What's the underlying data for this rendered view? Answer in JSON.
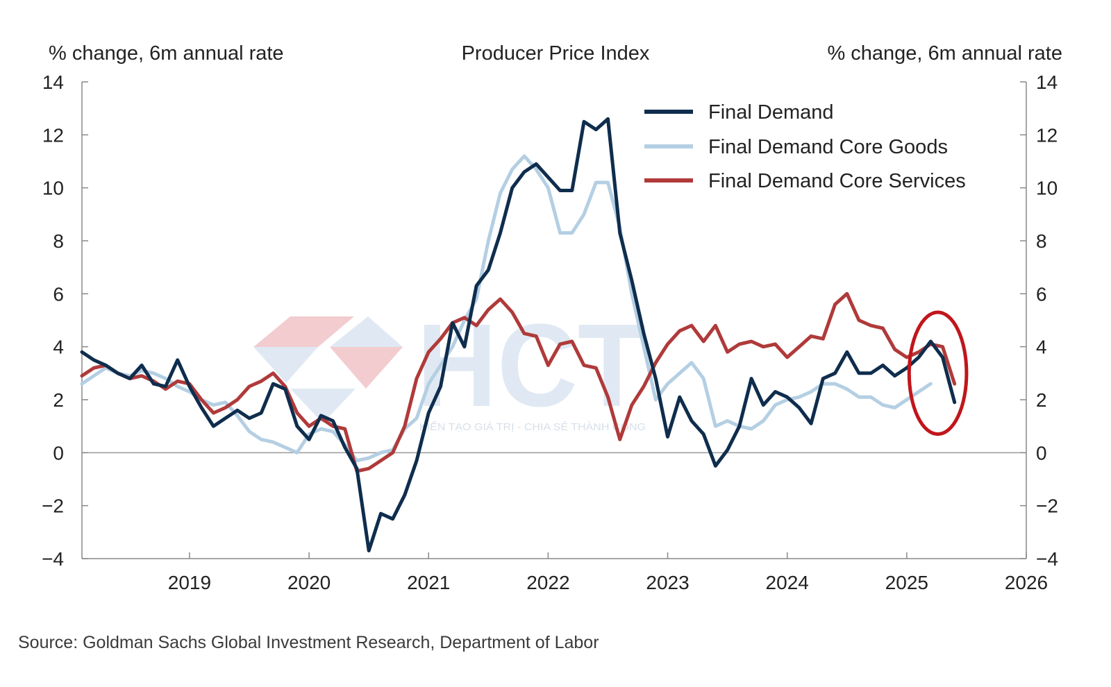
{
  "chart_data": {
    "type": "line",
    "title": "Producer Price Index",
    "ylabel_left": "% change, 6m annual rate",
    "ylabel_right": "% change, 6m annual rate",
    "ylim": [
      -4,
      14
    ],
    "y_ticks": [
      -4,
      -2,
      0,
      2,
      4,
      6,
      8,
      10,
      12,
      14
    ],
    "y_tick_labels": [
      "−4",
      "−2",
      "0",
      "2",
      "4",
      "6",
      "8",
      "10",
      "12",
      "14"
    ],
    "xlim": [
      2018.1,
      2026.0
    ],
    "x_ticks": [
      2019,
      2020,
      2021,
      2022,
      2023,
      2024,
      2025,
      2026
    ],
    "x_tick_labels": [
      "2019",
      "2020",
      "2021",
      "2022",
      "2023",
      "2024",
      "2025",
      "2026"
    ],
    "grid": false,
    "zero_line": true,
    "legend_position": "top-right",
    "series": [
      {
        "name": "Final Demand",
        "color": "#0f2d4d",
        "points": [
          [
            2018.1,
            3.8
          ],
          [
            2018.2,
            3.5
          ],
          [
            2018.3,
            3.3
          ],
          [
            2018.4,
            3.0
          ],
          [
            2018.5,
            2.8
          ],
          [
            2018.6,
            3.3
          ],
          [
            2018.7,
            2.6
          ],
          [
            2018.8,
            2.5
          ],
          [
            2018.9,
            3.5
          ],
          [
            2019.0,
            2.5
          ],
          [
            2019.1,
            1.7
          ],
          [
            2019.2,
            1.0
          ],
          [
            2019.3,
            1.3
          ],
          [
            2019.4,
            1.6
          ],
          [
            2019.5,
            1.3
          ],
          [
            2019.6,
            1.5
          ],
          [
            2019.7,
            2.6
          ],
          [
            2019.8,
            2.4
          ],
          [
            2019.9,
            1.0
          ],
          [
            2020.0,
            0.5
          ],
          [
            2020.1,
            1.4
          ],
          [
            2020.2,
            1.2
          ],
          [
            2020.3,
            0.2
          ],
          [
            2020.4,
            -0.6
          ],
          [
            2020.5,
            -3.7
          ],
          [
            2020.6,
            -2.3
          ],
          [
            2020.7,
            -2.5
          ],
          [
            2020.8,
            -1.6
          ],
          [
            2020.9,
            -0.3
          ],
          [
            2021.0,
            1.5
          ],
          [
            2021.1,
            2.5
          ],
          [
            2021.2,
            4.9
          ],
          [
            2021.3,
            4.0
          ],
          [
            2021.4,
            6.3
          ],
          [
            2021.5,
            6.9
          ],
          [
            2021.6,
            8.3
          ],
          [
            2021.7,
            10.0
          ],
          [
            2021.8,
            10.6
          ],
          [
            2021.9,
            10.9
          ],
          [
            2022.0,
            10.4
          ],
          [
            2022.1,
            9.9
          ],
          [
            2022.2,
            9.9
          ],
          [
            2022.3,
            12.5
          ],
          [
            2022.4,
            12.2
          ],
          [
            2022.5,
            12.6
          ],
          [
            2022.6,
            8.3
          ],
          [
            2022.7,
            6.5
          ],
          [
            2022.8,
            4.5
          ],
          [
            2022.9,
            2.8
          ],
          [
            2023.0,
            0.6
          ],
          [
            2023.1,
            2.1
          ],
          [
            2023.2,
            1.2
          ],
          [
            2023.3,
            0.7
          ],
          [
            2023.4,
            -0.5
          ],
          [
            2023.5,
            0.1
          ],
          [
            2023.6,
            1.0
          ],
          [
            2023.7,
            2.8
          ],
          [
            2023.8,
            1.8
          ],
          [
            2023.9,
            2.3
          ],
          [
            2024.0,
            2.1
          ],
          [
            2024.1,
            1.7
          ],
          [
            2024.2,
            1.1
          ],
          [
            2024.3,
            2.8
          ],
          [
            2024.4,
            3.0
          ],
          [
            2024.5,
            3.8
          ],
          [
            2024.6,
            3.0
          ],
          [
            2024.7,
            3.0
          ],
          [
            2024.8,
            3.3
          ],
          [
            2024.9,
            2.9
          ],
          [
            2025.0,
            3.2
          ],
          [
            2025.1,
            3.6
          ],
          [
            2025.2,
            4.2
          ],
          [
            2025.3,
            3.6
          ],
          [
            2025.4,
            1.9
          ]
        ]
      },
      {
        "name": "Final Demand Core Goods",
        "color": "#b4cfe3",
        "points": [
          [
            2018.1,
            2.6
          ],
          [
            2018.2,
            2.9
          ],
          [
            2018.3,
            3.2
          ],
          [
            2018.4,
            3.0
          ],
          [
            2018.5,
            2.9
          ],
          [
            2018.6,
            3.1
          ],
          [
            2018.7,
            3.0
          ],
          [
            2018.8,
            2.8
          ],
          [
            2018.9,
            2.5
          ],
          [
            2019.0,
            2.3
          ],
          [
            2019.1,
            2.0
          ],
          [
            2019.2,
            1.8
          ],
          [
            2019.3,
            1.9
          ],
          [
            2019.4,
            1.4
          ],
          [
            2019.5,
            0.8
          ],
          [
            2019.6,
            0.5
          ],
          [
            2019.7,
            0.4
          ],
          [
            2019.8,
            0.2
          ],
          [
            2019.9,
            0.0
          ],
          [
            2020.0,
            0.7
          ],
          [
            2020.1,
            0.9
          ],
          [
            2020.2,
            0.8
          ],
          [
            2020.3,
            0.3
          ],
          [
            2020.4,
            -0.3
          ],
          [
            2020.5,
            -0.2
          ],
          [
            2020.6,
            0.0
          ],
          [
            2020.7,
            0.1
          ],
          [
            2020.8,
            0.9
          ],
          [
            2020.9,
            1.3
          ],
          [
            2021.0,
            2.6
          ],
          [
            2021.1,
            3.3
          ],
          [
            2021.2,
            4.0
          ],
          [
            2021.3,
            5.0
          ],
          [
            2021.4,
            5.8
          ],
          [
            2021.5,
            8.0
          ],
          [
            2021.6,
            9.8
          ],
          [
            2021.7,
            10.7
          ],
          [
            2021.8,
            11.2
          ],
          [
            2021.9,
            10.7
          ],
          [
            2022.0,
            10.0
          ],
          [
            2022.1,
            8.3
          ],
          [
            2022.2,
            8.3
          ],
          [
            2022.3,
            9.0
          ],
          [
            2022.4,
            10.2
          ],
          [
            2022.5,
            10.2
          ],
          [
            2022.6,
            8.5
          ],
          [
            2022.7,
            6.0
          ],
          [
            2022.8,
            4.0
          ],
          [
            2022.9,
            2.0
          ],
          [
            2023.0,
            2.6
          ],
          [
            2023.1,
            3.0
          ],
          [
            2023.2,
            3.4
          ],
          [
            2023.3,
            2.8
          ],
          [
            2023.4,
            1.0
          ],
          [
            2023.5,
            1.2
          ],
          [
            2023.6,
            1.0
          ],
          [
            2023.7,
            0.9
          ],
          [
            2023.8,
            1.2
          ],
          [
            2023.9,
            1.8
          ],
          [
            2024.0,
            2.0
          ],
          [
            2024.1,
            2.1
          ],
          [
            2024.2,
            2.3
          ],
          [
            2024.3,
            2.6
          ],
          [
            2024.4,
            2.6
          ],
          [
            2024.5,
            2.4
          ],
          [
            2024.6,
            2.1
          ],
          [
            2024.7,
            2.1
          ],
          [
            2024.8,
            1.8
          ],
          [
            2024.9,
            1.7
          ],
          [
            2025.0,
            2.0
          ],
          [
            2025.1,
            2.3
          ],
          [
            2025.2,
            2.6
          ]
        ]
      },
      {
        "name": "Final Demand Core Services",
        "color": "#b03a3a",
        "points": [
          [
            2018.1,
            2.9
          ],
          [
            2018.2,
            3.2
          ],
          [
            2018.3,
            3.3
          ],
          [
            2018.4,
            3.0
          ],
          [
            2018.5,
            2.8
          ],
          [
            2018.6,
            2.9
          ],
          [
            2018.7,
            2.7
          ],
          [
            2018.8,
            2.4
          ],
          [
            2018.9,
            2.7
          ],
          [
            2019.0,
            2.6
          ],
          [
            2019.1,
            2.0
          ],
          [
            2019.2,
            1.5
          ],
          [
            2019.3,
            1.7
          ],
          [
            2019.4,
            2.0
          ],
          [
            2019.5,
            2.5
          ],
          [
            2019.6,
            2.7
          ],
          [
            2019.7,
            3.0
          ],
          [
            2019.8,
            2.5
          ],
          [
            2019.9,
            1.5
          ],
          [
            2020.0,
            1.0
          ],
          [
            2020.1,
            1.3
          ],
          [
            2020.2,
            1.0
          ],
          [
            2020.3,
            0.9
          ],
          [
            2020.4,
            -0.7
          ],
          [
            2020.5,
            -0.6
          ],
          [
            2020.6,
            -0.3
          ],
          [
            2020.7,
            0.0
          ],
          [
            2020.8,
            1.0
          ],
          [
            2020.9,
            2.8
          ],
          [
            2021.0,
            3.8
          ],
          [
            2021.1,
            4.3
          ],
          [
            2021.2,
            4.9
          ],
          [
            2021.3,
            5.1
          ],
          [
            2021.4,
            4.8
          ],
          [
            2021.5,
            5.4
          ],
          [
            2021.6,
            5.8
          ],
          [
            2021.7,
            5.3
          ],
          [
            2021.8,
            4.5
          ],
          [
            2021.9,
            4.4
          ],
          [
            2022.0,
            3.3
          ],
          [
            2022.1,
            4.1
          ],
          [
            2022.2,
            4.2
          ],
          [
            2022.3,
            3.3
          ],
          [
            2022.4,
            3.2
          ],
          [
            2022.5,
            2.1
          ],
          [
            2022.6,
            0.5
          ],
          [
            2022.7,
            1.8
          ],
          [
            2022.8,
            2.5
          ],
          [
            2022.9,
            3.4
          ],
          [
            2023.0,
            4.1
          ],
          [
            2023.1,
            4.6
          ],
          [
            2023.2,
            4.8
          ],
          [
            2023.3,
            4.2
          ],
          [
            2023.4,
            4.8
          ],
          [
            2023.5,
            3.8
          ],
          [
            2023.6,
            4.1
          ],
          [
            2023.7,
            4.2
          ],
          [
            2023.8,
            4.0
          ],
          [
            2023.9,
            4.1
          ],
          [
            2024.0,
            3.6
          ],
          [
            2024.1,
            4.0
          ],
          [
            2024.2,
            4.4
          ],
          [
            2024.3,
            4.3
          ],
          [
            2024.4,
            5.6
          ],
          [
            2024.5,
            6.0
          ],
          [
            2024.6,
            5.0
          ],
          [
            2024.7,
            4.8
          ],
          [
            2024.8,
            4.7
          ],
          [
            2024.9,
            3.9
          ],
          [
            2025.0,
            3.6
          ],
          [
            2025.1,
            3.8
          ],
          [
            2025.2,
            4.1
          ],
          [
            2025.3,
            4.0
          ],
          [
            2025.4,
            2.6
          ]
        ]
      }
    ],
    "annotations": [
      {
        "type": "ellipse",
        "color": "#c0161b",
        "center": [
          2025.26,
          3.0
        ],
        "radius_x": 0.24,
        "radius_y": 2.3
      }
    ],
    "source": "Source: Goldman Sachs Global Investment Research, Department of Labor"
  },
  "watermark": {
    "text": "HCT",
    "tagline": "KIẾN TẠO GIÁ TRỊ - CHIA SẺ THÀNH CÔNG"
  }
}
